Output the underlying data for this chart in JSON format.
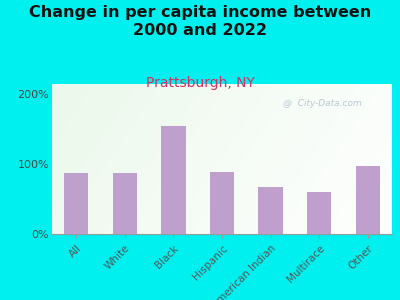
{
  "title": "Change in per capita income between\n2000 and 2022",
  "subtitle": "Prattsburgh, NY",
  "categories": [
    "All",
    "White",
    "Black",
    "Hispanic",
    "American Indian",
    "Multirace",
    "Other"
  ],
  "values": [
    88,
    87,
    155,
    89,
    68,
    60,
    98
  ],
  "bar_color": "#bf9fcc",
  "background_outer": "#00efef",
  "plot_bg_color": "#edf7e8",
  "title_fontsize": 11.5,
  "title_color": "#111111",
  "subtitle_fontsize": 10,
  "subtitle_color": "#cc3366",
  "yticks": [
    0,
    100,
    200
  ],
  "ytick_labels": [
    "0%",
    "100%",
    "200%"
  ],
  "ylim": [
    0,
    215
  ],
  "watermark": "@  City-Data.com"
}
